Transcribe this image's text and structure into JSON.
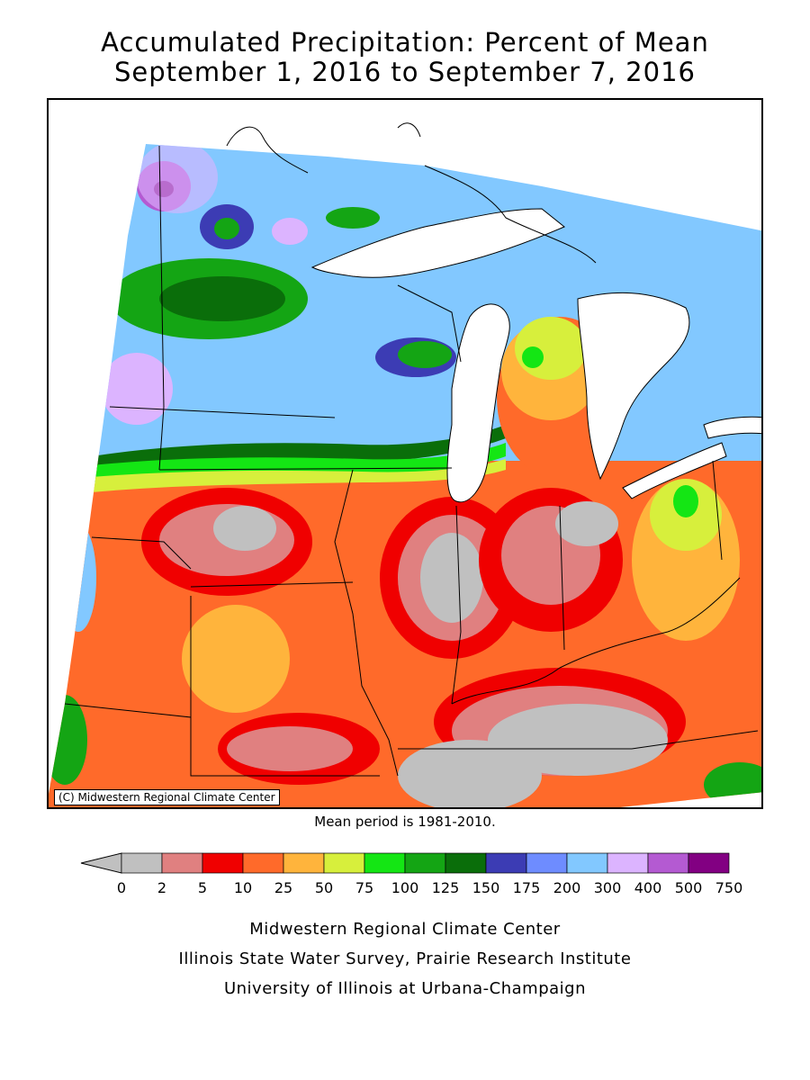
{
  "title": {
    "line1": "Accumulated Precipitation: Percent of Mean",
    "line2": "September 1, 2016 to September 7, 2016"
  },
  "map": {
    "credit": "(C) Midwestern Regional Climate Center",
    "mean_period": "Mean period is 1981-2010."
  },
  "legend": {
    "tick_labels": [
      "0",
      "2",
      "5",
      "10",
      "25",
      "50",
      "75",
      "100",
      "125",
      "150",
      "175",
      "200",
      "300",
      "400",
      "500",
      "750"
    ],
    "colors": [
      "#c0c0c0",
      "#e08080",
      "#f00000",
      "#ff6a2a",
      "#ffb43c",
      "#d7ef3c",
      "#14e614",
      "#14a514",
      "#0a6e0a",
      "#3c3cb4",
      "#6e8cff",
      "#82c8ff",
      "#dcb4ff",
      "#b45ad2",
      "#820082"
    ],
    "underflow_color": "#c0c0c0"
  },
  "footer": {
    "line1": "Midwestern Regional Climate Center",
    "line2": "Illinois State Water Survey, Prairie Research Institute",
    "line3": "University of Illinois at Urbana-Champaign"
  }
}
